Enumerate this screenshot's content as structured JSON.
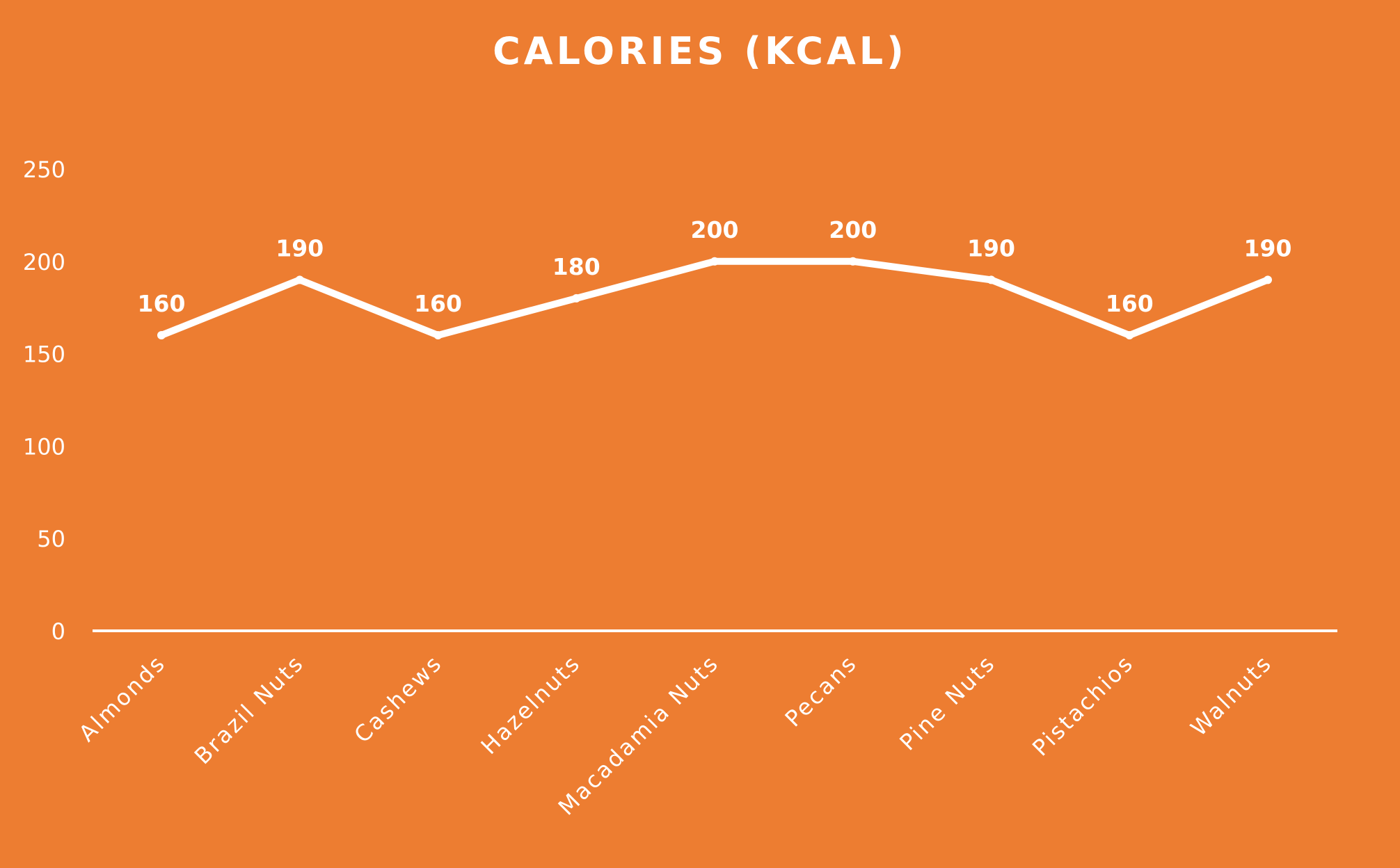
{
  "chart_data": {
    "type": "line",
    "title": "CALORIES (KCAL)",
    "xlabel": "",
    "ylabel": "",
    "categories": [
      "Almonds",
      "Brazil Nuts",
      "Cashews",
      "Hazelnuts",
      "Macadamia Nuts",
      "Pecans",
      "Pine Nuts",
      "Pistachios",
      "Walnuts"
    ],
    "series": [
      {
        "values": [
          160,
          190,
          160,
          180,
          200,
          200,
          190,
          160,
          190
        ]
      }
    ],
    "data_labels": [
      "160",
      "190",
      "160",
      "180",
      "200",
      "200",
      "190",
      "160",
      "190"
    ],
    "ylim": [
      0,
      250
    ],
    "yticks": [
      "0",
      "50",
      "100",
      "150",
      "200",
      "250"
    ],
    "grid": false,
    "drop_lines": true,
    "legend": "none",
    "colors": {
      "background": "#ED7D31",
      "line": "#FFFFFF",
      "text": "#FFFFFF"
    }
  }
}
